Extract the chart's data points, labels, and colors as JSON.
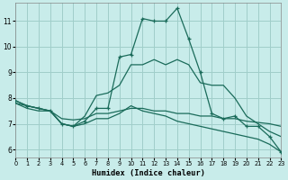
{
  "xlabel": "Humidex (Indice chaleur)",
  "background_color": "#c8ecea",
  "grid_color": "#a0ceca",
  "line_color": "#1a6b5a",
  "xlim": [
    0,
    23
  ],
  "ylim": [
    5.7,
    11.7
  ],
  "xticks": [
    0,
    1,
    2,
    3,
    4,
    5,
    6,
    7,
    8,
    9,
    10,
    11,
    12,
    13,
    14,
    15,
    16,
    17,
    18,
    19,
    20,
    21,
    22,
    23
  ],
  "yticks": [
    6,
    7,
    8,
    9,
    10,
    11
  ],
  "series_main": {
    "x": [
      0,
      1,
      2,
      3,
      4,
      5,
      6,
      7,
      8,
      9,
      10,
      11,
      12,
      13,
      14,
      15,
      16,
      17,
      18,
      19,
      20,
      21,
      22,
      23
    ],
    "y": [
      7.9,
      7.7,
      7.6,
      7.5,
      7.0,
      6.9,
      7.1,
      7.6,
      7.6,
      9.6,
      9.7,
      11.1,
      11.0,
      11.0,
      11.5,
      10.3,
      9.0,
      7.4,
      7.2,
      7.3,
      6.9,
      6.9,
      6.5,
      5.9
    ]
  },
  "series_upper": {
    "x": [
      0,
      1,
      2,
      3,
      4,
      5,
      6,
      7,
      8,
      9,
      10,
      11,
      12,
      13,
      14,
      15,
      16,
      17,
      18,
      19,
      20,
      21,
      22,
      23
    ],
    "y": [
      7.9,
      7.7,
      7.6,
      7.5,
      7.0,
      6.9,
      7.3,
      8.1,
      8.2,
      8.5,
      9.3,
      9.3,
      9.5,
      9.3,
      9.5,
      9.3,
      8.6,
      8.5,
      8.5,
      8.0,
      7.3,
      7.0,
      6.7,
      6.5
    ]
  },
  "series_mid": {
    "x": [
      0,
      1,
      2,
      3,
      4,
      5,
      6,
      7,
      8,
      9,
      10,
      11,
      12,
      13,
      14,
      15,
      16,
      17,
      18,
      19,
      20,
      21,
      22,
      23
    ],
    "y": [
      7.8,
      7.6,
      7.5,
      7.5,
      7.2,
      7.15,
      7.2,
      7.4,
      7.4,
      7.5,
      7.6,
      7.6,
      7.5,
      7.5,
      7.4,
      7.4,
      7.3,
      7.3,
      7.2,
      7.2,
      7.1,
      7.05,
      7.0,
      6.9
    ]
  },
  "series_diag": {
    "x": [
      0,
      1,
      2,
      3,
      4,
      5,
      6,
      7,
      8,
      9,
      10,
      11,
      12,
      13,
      14,
      15,
      16,
      17,
      18,
      19,
      20,
      21,
      22,
      23
    ],
    "y": [
      7.8,
      7.7,
      7.6,
      7.5,
      7.0,
      6.9,
      7.0,
      7.2,
      7.2,
      7.4,
      7.7,
      7.5,
      7.4,
      7.3,
      7.1,
      7.0,
      6.9,
      6.8,
      6.7,
      6.6,
      6.5,
      6.4,
      6.2,
      5.9
    ]
  }
}
